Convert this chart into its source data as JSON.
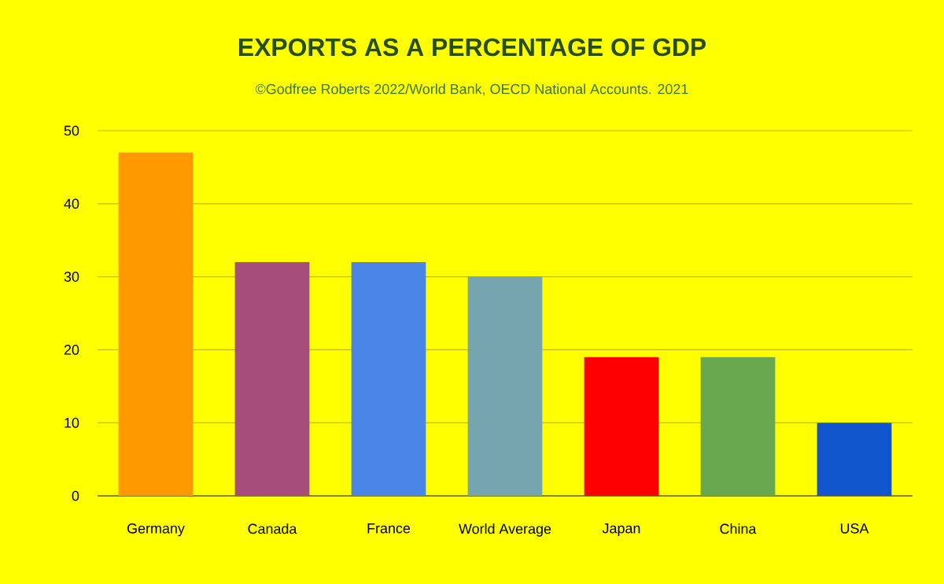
{
  "chart_data": {
    "type": "bar",
    "title": "EXPORTS AS A PERCENTAGE OF GDP",
    "subtitle": "©Godfree Roberts 2022/World Bank, OECD National Accounts. 2021",
    "categories": [
      "Germany",
      "Canada",
      "France",
      "World Average",
      "Japan",
      "China",
      "USA"
    ],
    "values": [
      47,
      32,
      32,
      30,
      19,
      19,
      10
    ],
    "colors": [
      "#ff9900",
      "#a64d79",
      "#4a86e8",
      "#76a5af",
      "#ff0000",
      "#6aa84f",
      "#1155cc"
    ],
    "ylim": [
      0,
      50
    ],
    "yticks": [
      0,
      10,
      20,
      30,
      40,
      50
    ],
    "grid": "y"
  }
}
